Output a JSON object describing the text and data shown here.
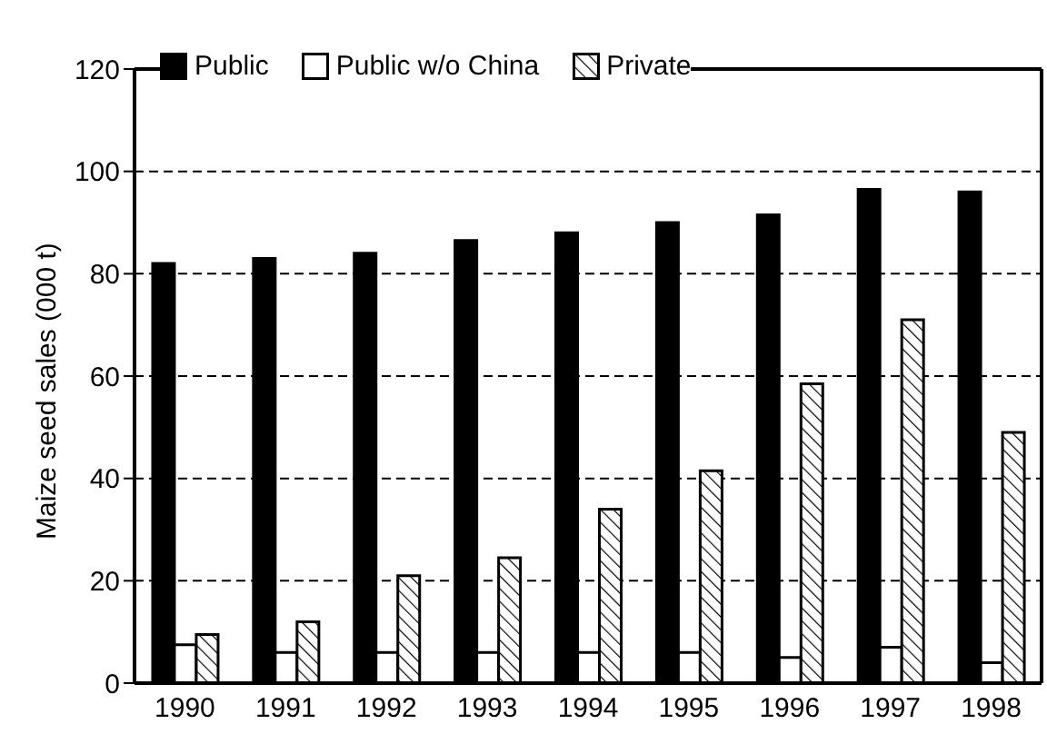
{
  "chart_data": {
    "type": "bar",
    "ylabel": "Maize seed sales (000 t)",
    "categories": [
      "1990",
      "1991",
      "1992",
      "1993",
      "1994",
      "1995",
      "1996",
      "1997",
      "1998"
    ],
    "series": [
      {
        "name": "Public",
        "color": "#000000",
        "values": [
          82,
          83,
          84,
          86.5,
          88,
          90,
          91.5,
          96.5,
          96
        ]
      },
      {
        "name": "Public w/o China",
        "color": "#ffffff",
        "values": [
          7.5,
          6,
          6,
          6,
          6,
          6,
          5,
          7,
          4
        ]
      },
      {
        "name": "Private",
        "color": "#000000",
        "values": [
          9.5,
          12,
          21,
          24.5,
          34,
          41.5,
          58.5,
          71,
          49
        ]
      }
    ],
    "ylim": [
      0,
      120
    ],
    "yticks": [
      0,
      20,
      40,
      60,
      80,
      100,
      120
    ],
    "grid": "y",
    "legend": "top left"
  }
}
